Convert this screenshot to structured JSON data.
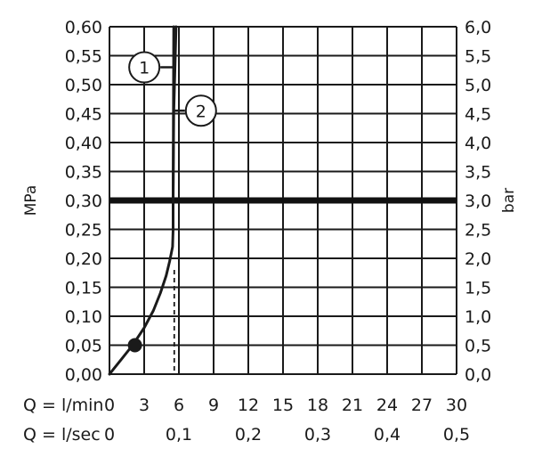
{
  "chart_data": {
    "type": "line",
    "y_left_label": "MPa",
    "y_right_label": "bar",
    "y_left_ticks": [
      "0,00",
      "0,05",
      "0,10",
      "0,15",
      "0,20",
      "0,25",
      "0,30",
      "0,35",
      "0,40",
      "0,45",
      "0,50",
      "0,55",
      "0,60"
    ],
    "y_right_ticks": [
      "0,0",
      "0,5",
      "1,0",
      "1,5",
      "2,0",
      "2,5",
      "3,0",
      "3,5",
      "4,0",
      "4,5",
      "5,0",
      "5,5",
      "6,0"
    ],
    "ylim": [
      0,
      0.6
    ],
    "x_top_label": "Q = l/min",
    "x_top_ticks": [
      "0",
      "3",
      "6",
      "9",
      "12",
      "15",
      "18",
      "21",
      "24",
      "27",
      "30"
    ],
    "x_bottom_label": "Q = l/sec",
    "x_bottom_ticks": [
      "0",
      "0,1",
      "0,2",
      "0,3",
      "0,4",
      "0,5"
    ],
    "xlim": [
      0,
      30
    ],
    "grid": true,
    "reference_line_y": 0.3,
    "series": [
      {
        "name": "1",
        "color": "#1a1a1a",
        "x": [
          0,
          1,
          2,
          3,
          3.8,
          4.4,
          4.9,
          5.2,
          5.35,
          5.45,
          5.5,
          5.5,
          5.55
        ],
        "y": [
          0,
          0.025,
          0.05,
          0.08,
          0.11,
          0.14,
          0.17,
          0.195,
          0.21,
          0.22,
          0.25,
          0.3,
          0.6
        ]
      },
      {
        "name": "2",
        "color": "#1a1a1a",
        "x": [
          5.5,
          5.55,
          5.75
        ],
        "y": [
          0.3,
          0.45,
          0.6
        ]
      }
    ],
    "marked_point": {
      "x": 2.2,
      "y": 0.05
    },
    "dashed_drop": {
      "x": 5.6,
      "y_from": 0.18,
      "y_to": 0
    }
  }
}
